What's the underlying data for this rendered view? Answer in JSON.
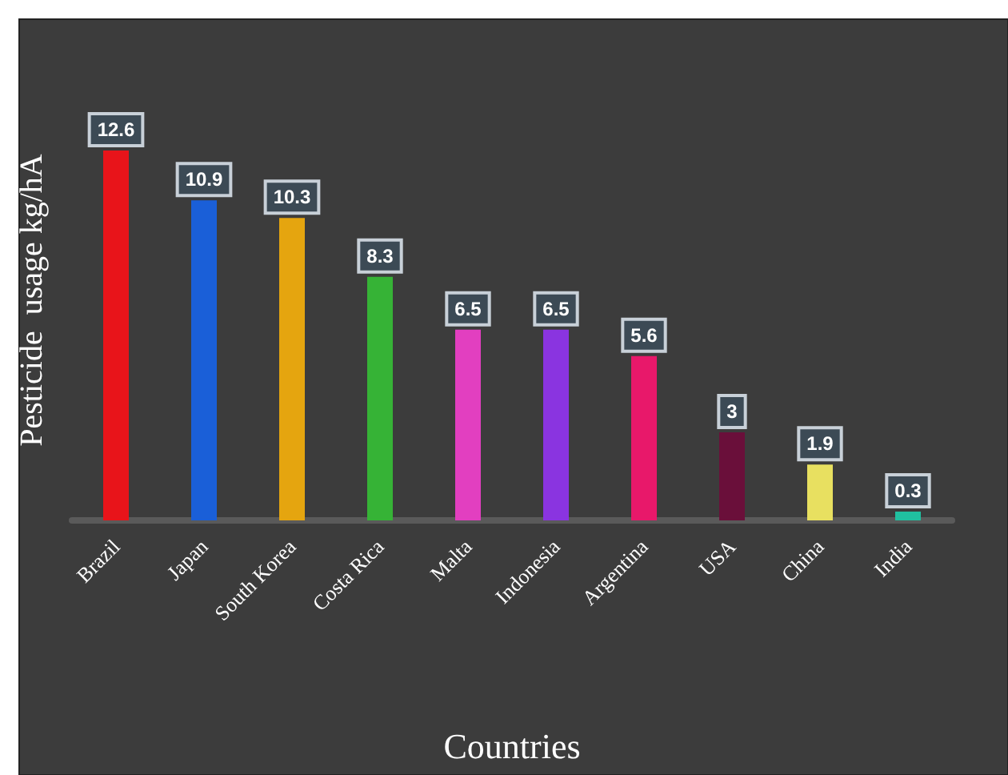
{
  "chart_data": {
    "type": "bar",
    "xlabel": "Countries",
    "ylabel": "Pesticide  usage kg/hA",
    "categories": [
      "Brazil",
      "Japan",
      "South Korea",
      "Costa Rica",
      "Malta",
      "Indonesia",
      "Argentina",
      "USA",
      "China",
      "India"
    ],
    "values": [
      12.6,
      10.9,
      10.3,
      8.3,
      6.5,
      6.5,
      5.6,
      3,
      1.9,
      0.3
    ],
    "colors": [
      "#e8141a",
      "#1a5fd8",
      "#e5a50f",
      "#36b336",
      "#e23fc0",
      "#8a34e0",
      "#e8186a",
      "#6a0f3a",
      "#e8e060",
      "#20c0a0"
    ],
    "data_labels": true
  }
}
